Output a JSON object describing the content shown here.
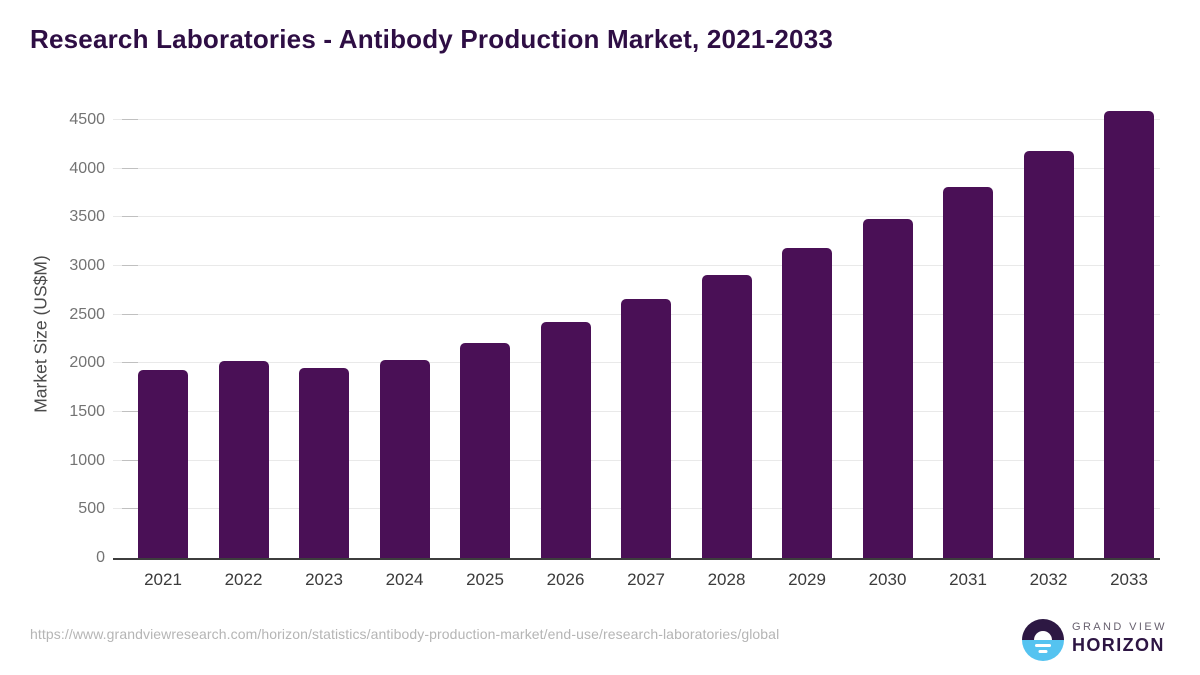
{
  "header": {
    "title": "Research Laboratories - Antibody Production Market, 2021-2033"
  },
  "chart_data": {
    "type": "bar",
    "title": "Research Laboratories - Antibody Production Market, 2021-2033",
    "categories": [
      "2021",
      "2022",
      "2023",
      "2024",
      "2025",
      "2026",
      "2027",
      "2028",
      "2029",
      "2030",
      "2031",
      "2032",
      "2033"
    ],
    "values": [
      1930,
      2020,
      1950,
      2030,
      2210,
      2430,
      2660,
      2910,
      3190,
      3480,
      3810,
      4180,
      4595
    ],
    "xlabel": "",
    "ylabel": "Market Size (US$M)",
    "ylim": [
      0,
      4675
    ],
    "yticks": [
      0,
      500,
      1000,
      1500,
      2000,
      2500,
      3000,
      3500,
      4000,
      4500
    ],
    "grid": "horizontal",
    "legend_position": "none",
    "bar_color": "#4a1056"
  },
  "footer": {
    "source_url": "https://www.grandviewresearch.com/horizon/statistics/antibody-production-market/end-use/research-laboratories/global",
    "logo": {
      "line1": "GRAND VIEW",
      "line2": "HORIZON"
    }
  },
  "colors": {
    "title_text": "#2e0e44",
    "bar": "#4a1056",
    "gridline": "#e9e9e9",
    "axis_line": "#3d3d3d",
    "y_tick_text": "#737373",
    "x_tick_text": "#3b3b3b",
    "url_text": "#b5b5b5",
    "logo_purple": "#2d1843",
    "logo_blue": "#55c3f0"
  }
}
